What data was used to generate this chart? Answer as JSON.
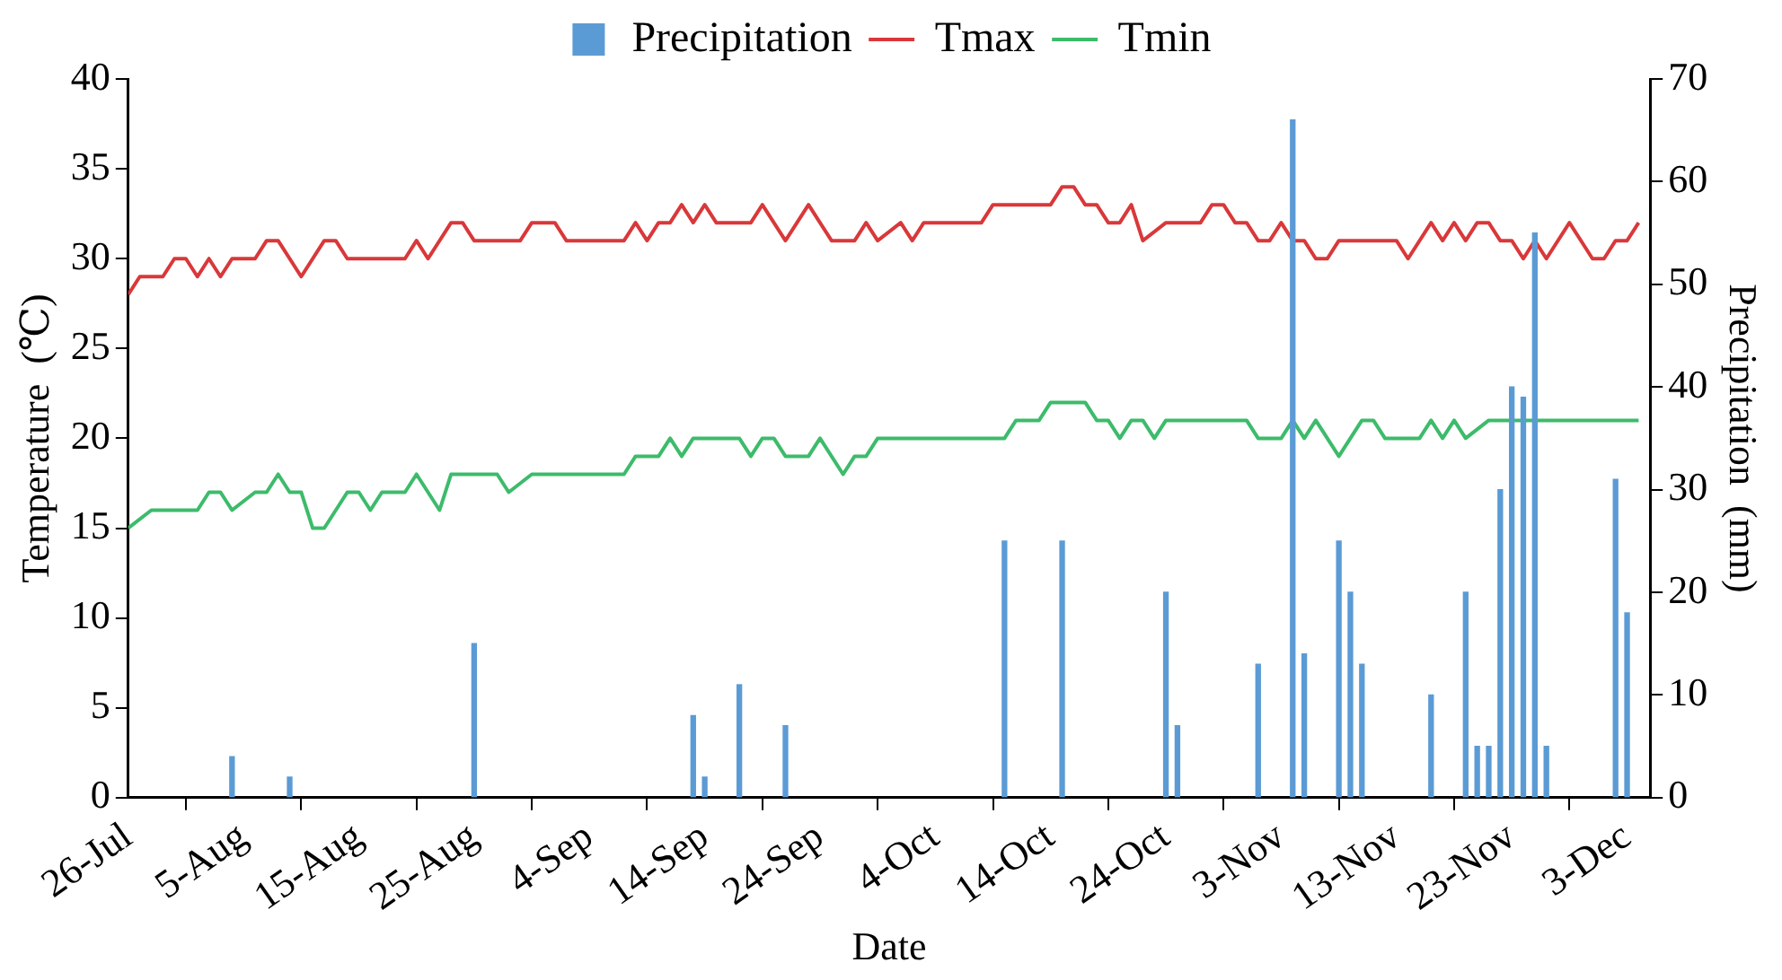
{
  "chart_data": {
    "type": "line",
    "xlabel": "Date",
    "ylabel": "Temperature  (℃)",
    "y2label": "Precipitation  (mm)",
    "xlim": [
      "--07-26",
      "--12-05"
    ],
    "xticks": [
      {
        "value": "--07-26",
        "label": "26-Jul"
      },
      {
        "value": "--08-05",
        "label": "5-Aug"
      },
      {
        "value": "--08-15",
        "label": "15-Aug"
      },
      {
        "value": "--08-25",
        "label": "25-Aug"
      },
      {
        "value": "--09-04",
        "label": "4-Sep"
      },
      {
        "value": "--09-14",
        "label": "14-Sep"
      },
      {
        "value": "--09-24",
        "label": "24-Sep"
      },
      {
        "value": "--10-04",
        "label": "4-Oct"
      },
      {
        "value": "--10-14",
        "label": "14-Oct"
      },
      {
        "value": "--10-24",
        "label": "24-Oct"
      },
      {
        "value": "--11-03",
        "label": "3-Nov"
      },
      {
        "value": "--11-13",
        "label": "13-Nov"
      },
      {
        "value": "--11-23",
        "label": "23-Nov"
      },
      {
        "value": "--12-03",
        "label": "3-Dec"
      }
    ],
    "ylim": [
      0,
      40
    ],
    "yticks": [
      0,
      5,
      10,
      15,
      20,
      25,
      30,
      35,
      40
    ],
    "y2lim": [
      0,
      70
    ],
    "y2ticks": [
      0,
      10,
      20,
      30,
      40,
      50,
      60,
      70
    ],
    "legend": "top",
    "marker": "none",
    "line_style": "solid",
    "series": [
      {
        "name": "Precipitation",
        "type": "bar",
        "axis": "y2",
        "color": "#5b9bd5",
        "x": [
          "--08-04",
          "--08-09",
          "--08-25",
          "--09-13",
          "--09-14",
          "--09-17",
          "--09-21",
          "--10-10",
          "--10-15",
          "--10-24",
          "--10-25",
          "--11-01",
          "--11-04",
          "--11-05",
          "--11-08",
          "--11-09",
          "--11-10",
          "--11-16",
          "--11-19",
          "--11-20",
          "--11-21",
          "--11-22",
          "--11-23",
          "--11-24",
          "--11-25",
          "--11-26",
          "--12-02",
          "--12-03"
        ],
        "values": [
          4,
          2,
          15,
          8,
          2,
          11,
          7,
          25,
          25,
          20,
          7,
          13,
          66,
          14,
          25,
          20,
          13,
          10,
          20,
          5,
          5,
          30,
          40,
          39,
          55,
          5,
          31,
          18
        ]
      },
      {
        "name": "Tmax",
        "color": "#d9383a",
        "x": [
          "--07-26",
          "--07-27",
          "--07-29",
          "--07-30",
          "--07-31",
          "--08-01",
          "--08-02",
          "--08-03",
          "--08-04",
          "--08-06",
          "--08-07",
          "--08-08",
          "--08-10",
          "--08-12",
          "--08-13",
          "--08-14",
          "--08-19",
          "--08-20",
          "--08-21",
          "--08-23",
          "--08-24",
          "--08-25",
          "--08-29",
          "--08-30",
          "--09-01",
          "--09-02",
          "--09-07",
          "--09-08",
          "--09-09",
          "--09-10",
          "--09-11",
          "--09-12",
          "--09-13",
          "--09-14",
          "--09-15",
          "--09-18",
          "--09-19",
          "--09-21",
          "--09-23",
          "--09-25",
          "--09-27",
          "--09-28",
          "--09-29",
          "--10-01",
          "--10-02",
          "--10-03",
          "--10-08",
          "--10-09",
          "--10-14",
          "--10-15",
          "--10-16",
          "--10-17",
          "--10-18",
          "--10-19",
          "--10-20",
          "--10-21",
          "--10-22",
          "--10-24",
          "--10-27",
          "--10-28",
          "--10-29",
          "--10-30",
          "--10-31",
          "--11-01",
          "--11-02",
          "--11-03",
          "--11-04",
          "--11-05",
          "--11-06",
          "--11-07",
          "--11-08",
          "--11-13",
          "--11-14",
          "--11-16",
          "--11-17",
          "--11-18",
          "--11-19",
          "--11-20",
          "--11-21",
          "--11-22",
          "--11-23",
          "--11-24",
          "--11-25",
          "--11-26",
          "--11-28",
          "--11-30",
          "--12-01",
          "--12-02",
          "--12-03",
          "--12-04"
        ],
        "values": [
          28,
          29,
          29,
          30,
          30,
          29,
          30,
          29,
          30,
          30,
          31,
          31,
          29,
          31,
          31,
          30,
          30,
          31,
          30,
          32,
          32,
          31,
          31,
          32,
          32,
          31,
          31,
          32,
          31,
          32,
          32,
          33,
          32,
          33,
          32,
          32,
          33,
          31,
          33,
          31,
          31,
          32,
          31,
          32,
          31,
          32,
          32,
          33,
          33,
          34,
          34,
          33,
          33,
          32,
          32,
          33,
          31,
          32,
          32,
          33,
          33,
          32,
          32,
          31,
          31,
          32,
          31,
          31,
          30,
          30,
          31,
          31,
          30,
          32,
          31,
          32,
          31,
          32,
          32,
          31,
          31,
          30,
          31,
          30,
          32,
          30,
          30,
          31,
          31,
          32
        ]
      },
      {
        "name": "Tmin",
        "color": "#3dbb6b",
        "x": [
          "--07-26",
          "--07-28",
          "--08-01",
          "--08-02",
          "--08-03",
          "--08-04",
          "--08-06",
          "--08-07",
          "--08-08",
          "--08-09",
          "--08-10",
          "--08-11",
          "--08-12",
          "--08-14",
          "--08-15",
          "--08-16",
          "--08-17",
          "--08-19",
          "--08-20",
          "--08-22",
          "--08-23",
          "--08-27",
          "--08-28",
          "--08-30",
          "--09-07",
          "--09-08",
          "--09-10",
          "--09-11",
          "--09-12",
          "--09-13",
          "--09-17",
          "--09-18",
          "--09-19",
          "--09-20",
          "--09-21",
          "--09-23",
          "--09-24",
          "--09-26",
          "--09-27",
          "--09-28",
          "--09-29",
          "--10-10",
          "--10-11",
          "--10-13",
          "--10-14",
          "--10-17",
          "--10-18",
          "--10-19",
          "--10-20",
          "--10-21",
          "--10-22",
          "--10-23",
          "--10-24",
          "--10-31",
          "--11-01",
          "--11-03",
          "--11-04",
          "--11-05",
          "--11-06",
          "--11-08",
          "--11-10",
          "--11-11",
          "--11-12",
          "--11-15",
          "--11-16",
          "--11-17",
          "--11-18",
          "--11-19",
          "--11-21",
          "--12-04"
        ],
        "values": [
          15,
          16,
          16,
          17,
          17,
          16,
          17,
          17,
          18,
          17,
          17,
          15,
          15,
          17,
          17,
          16,
          17,
          17,
          18,
          16,
          18,
          18,
          17,
          18,
          18,
          19,
          19,
          20,
          19,
          20,
          20,
          19,
          20,
          20,
          19,
          19,
          20,
          18,
          19,
          19,
          20,
          20,
          21,
          21,
          22,
          22,
          21,
          21,
          20,
          21,
          21,
          20,
          21,
          21,
          20,
          20,
          21,
          20,
          21,
          19,
          21,
          21,
          20,
          20,
          21,
          20,
          21,
          20,
          21,
          21
        ]
      }
    ]
  }
}
